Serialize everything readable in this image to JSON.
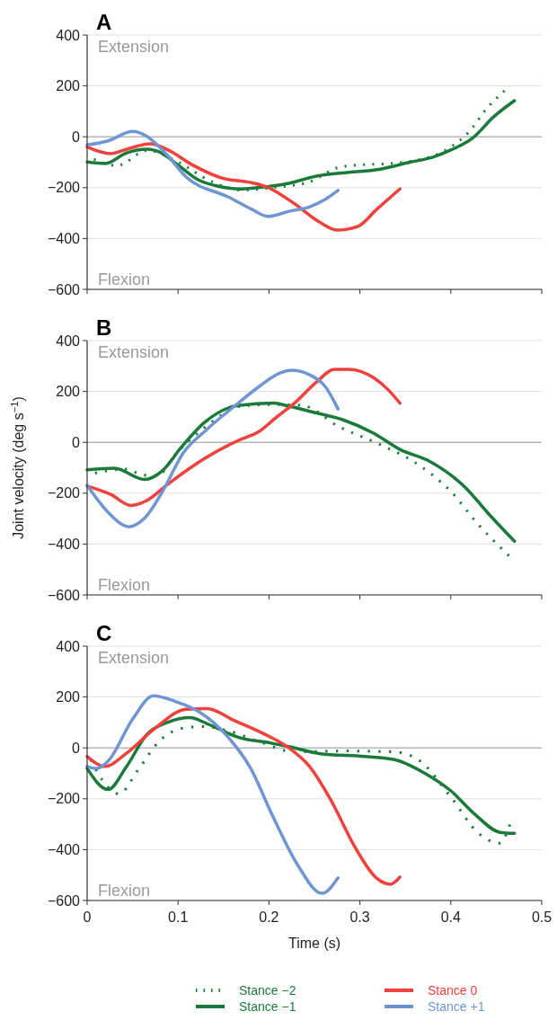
{
  "chart_data": [
    {
      "type": "line",
      "title": "A",
      "annotations": [
        "Extension",
        "Flexion"
      ],
      "xlim": [
        0,
        0.5
      ],
      "xticks": [
        0,
        0.1,
        0.2,
        0.3,
        0.4,
        0.5
      ],
      "ylim": [
        -600,
        400
      ],
      "yticks": [
        {
          "value": -600,
          "label": "−600"
        },
        {
          "value": -400,
          "label": "−400"
        },
        {
          "value": -200,
          "label": "−200"
        },
        0,
        200,
        400
      ],
      "grid": "y",
      "tick_labels": "y",
      "marker": "none",
      "legend": false,
      "series": [
        {
          "color": "#1a7a3a",
          "line_style": "dotted",
          "x": [
            0,
            0.033,
            0.066,
            0.1,
            0.136,
            0.172,
            0.205,
            0.242,
            0.275,
            0.298,
            0.334,
            0.381,
            0.4,
            0.42,
            0.44,
            0.459
          ],
          "values": [
            -75,
            -113,
            -54,
            -99,
            -175,
            -210,
            -199,
            -181,
            -122,
            -111,
            -105,
            -75,
            -40,
            19,
            113,
            181
          ]
        },
        {
          "color": "#1a7a3a",
          "line_style": "solid",
          "x": [
            0,
            0.02,
            0.043,
            0.066,
            0.08,
            0.1,
            0.122,
            0.142,
            0.169,
            0.2,
            0.222,
            0.252,
            0.288,
            0.321,
            0.354,
            0.381,
            0.4,
            0.424,
            0.447,
            0.47
          ],
          "values": [
            -99,
            -105,
            -64,
            -49,
            -61,
            -111,
            -169,
            -193,
            -205,
            -195,
            -183,
            -155,
            -140,
            -128,
            -101,
            -79,
            -52,
            -5,
            78,
            142
          ]
        },
        {
          "color": "#f0413c",
          "line_style": "solid",
          "x": [
            0,
            0.026,
            0.046,
            0.07,
            0.089,
            0.116,
            0.149,
            0.179,
            0.199,
            0.228,
            0.255,
            0.275,
            0.298,
            0.318,
            0.344
          ],
          "values": [
            -40,
            -66,
            -46,
            -28,
            -52,
            -111,
            -163,
            -179,
            -199,
            -263,
            -334,
            -367,
            -352,
            -287,
            -205
          ]
        },
        {
          "color": "#6f95d2",
          "line_style": "solid",
          "x": [
            0,
            0.023,
            0.05,
            0.066,
            0.086,
            0.109,
            0.156,
            0.182,
            0.199,
            0.222,
            0.245,
            0.262,
            0.276
          ],
          "values": [
            -32,
            -16,
            21,
            1,
            -64,
            -158,
            -238,
            -287,
            -313,
            -293,
            -275,
            -246,
            -211
          ]
        }
      ]
    },
    {
      "type": "line",
      "title": "B",
      "ylabel": "Joint velocity (deg s$^{−1}$)",
      "annotations": [
        "Extension",
        "Flexion"
      ],
      "xlim": [
        0,
        0.5
      ],
      "xticks": [
        0,
        0.1,
        0.2,
        0.3,
        0.4,
        0.5
      ],
      "ylim": [
        -600,
        400
      ],
      "yticks": [
        {
          "value": -600,
          "label": "−600"
        },
        {
          "value": -400,
          "label": "−400"
        },
        {
          "value": -200,
          "label": "−200"
        },
        0,
        200,
        400
      ],
      "grid": "y",
      "tick_labels": "y",
      "marker": "none",
      "legend": false,
      "series": [
        {
          "color": "#1a7a3a",
          "line_style": "dotted",
          "x": [
            0,
            0.043,
            0.056,
            0.076,
            0.099,
            0.132,
            0.169,
            0.202,
            0.235,
            0.278,
            0.321,
            0.364,
            0.4,
            0.43,
            0.464
          ],
          "values": [
            -128,
            -105,
            -122,
            -134,
            -40,
            66,
            142,
            148,
            146,
            60,
            -7,
            -87,
            -193,
            -322,
            -446
          ]
        },
        {
          "color": "#1a7a3a",
          "line_style": "solid",
          "x": [
            0,
            0.03,
            0.063,
            0.083,
            0.103,
            0.129,
            0.166,
            0.205,
            0.222,
            0.248,
            0.281,
            0.315,
            0.344,
            0.377,
            0.417,
            0.44,
            0.47
          ],
          "values": [
            -108,
            -102,
            -146,
            -111,
            -22,
            78,
            145,
            154,
            142,
            119,
            89,
            36,
            -28,
            -75,
            -181,
            -275,
            -389
          ]
        },
        {
          "color": "#f0413c",
          "line_style": "solid",
          "x": [
            0,
            0.026,
            0.048,
            0.066,
            0.089,
            0.129,
            0.166,
            0.189,
            0.209,
            0.228,
            0.252,
            0.272,
            0.288,
            0.315,
            0.331,
            0.344
          ],
          "values": [
            -172,
            -205,
            -248,
            -228,
            -164,
            -64,
            7,
            42,
            101,
            154,
            236,
            287,
            287,
            254,
            207,
            154
          ]
        },
        {
          "color": "#6f95d2",
          "line_style": "solid",
          "x": [
            0,
            0.023,
            0.046,
            0.063,
            0.083,
            0.106,
            0.129,
            0.162,
            0.189,
            0.212,
            0.225,
            0.245,
            0.262,
            0.276
          ],
          "values": [
            -169,
            -275,
            -332,
            -299,
            -193,
            -40,
            42,
            142,
            219,
            272,
            283,
            265,
            219,
            131
          ]
        }
      ]
    },
    {
      "type": "line",
      "title": "C",
      "xlabel": "Time (s)",
      "annotations": [
        "Extension",
        "Flexion"
      ],
      "xlim": [
        0,
        0.5
      ],
      "xticks": [
        0,
        0.1,
        0.2,
        0.3,
        0.4,
        0.5
      ],
      "ylim": [
        -600,
        400
      ],
      "yticks": [
        {
          "value": -600,
          "label": "−600"
        },
        {
          "value": -400,
          "label": "−400"
        },
        {
          "value": -200,
          "label": "−200"
        },
        0,
        200,
        400
      ],
      "grid": "y",
      "marker": "none",
      "legend": "bottom",
      "series": [
        {
          "name": "Stance −2",
          "color": "#1a7a3a",
          "line_style": "dotted",
          "x": [
            0,
            0.017,
            0.035,
            0.056,
            0.079,
            0.106,
            0.129,
            0.156,
            0.189,
            0.228,
            0.281,
            0.338,
            0.364,
            0.4,
            0.43,
            0.454,
            0.465
          ],
          "values": [
            -16,
            -128,
            -181,
            -87,
            25,
            78,
            84,
            66,
            25,
            -16,
            -12,
            -16,
            -46,
            -193,
            -334,
            -375,
            -301
          ]
        },
        {
          "name": "Stance −1",
          "color": "#1a7a3a",
          "line_style": "solid",
          "x": [
            0,
            0.023,
            0.043,
            0.066,
            0.089,
            0.113,
            0.132,
            0.166,
            0.202,
            0.222,
            0.255,
            0.305,
            0.338,
            0.371,
            0.4,
            0.427,
            0.454,
            0.47
          ],
          "values": [
            -81,
            -164,
            -75,
            54,
            101,
            119,
            95,
            42,
            19,
            5,
            -22,
            -34,
            -46,
            -99,
            -169,
            -263,
            -332,
            -336
          ]
        },
        {
          "name": "Stance 0",
          "color": "#f0413c",
          "line_style": "solid",
          "x": [
            0,
            0.02,
            0.043,
            0.073,
            0.109,
            0.132,
            0.162,
            0.195,
            0.219,
            0.245,
            0.268,
            0.295,
            0.318,
            0.334,
            0.344
          ],
          "values": [
            -34,
            -73,
            -22,
            72,
            152,
            154,
            107,
            54,
            7,
            -75,
            -205,
            -393,
            -511,
            -536,
            -508
          ]
        },
        {
          "name": "Stance +1",
          "color": "#6f95d2",
          "line_style": "solid",
          "x": [
            0,
            0.01,
            0.023,
            0.05,
            0.073,
            0.096,
            0.123,
            0.152,
            0.179,
            0.205,
            0.232,
            0.258,
            0.276
          ],
          "values": [
            -73,
            -81,
            -52,
            113,
            205,
            184,
            142,
            54,
            -75,
            -275,
            -463,
            -572,
            -511
          ]
        }
      ]
    }
  ]
}
